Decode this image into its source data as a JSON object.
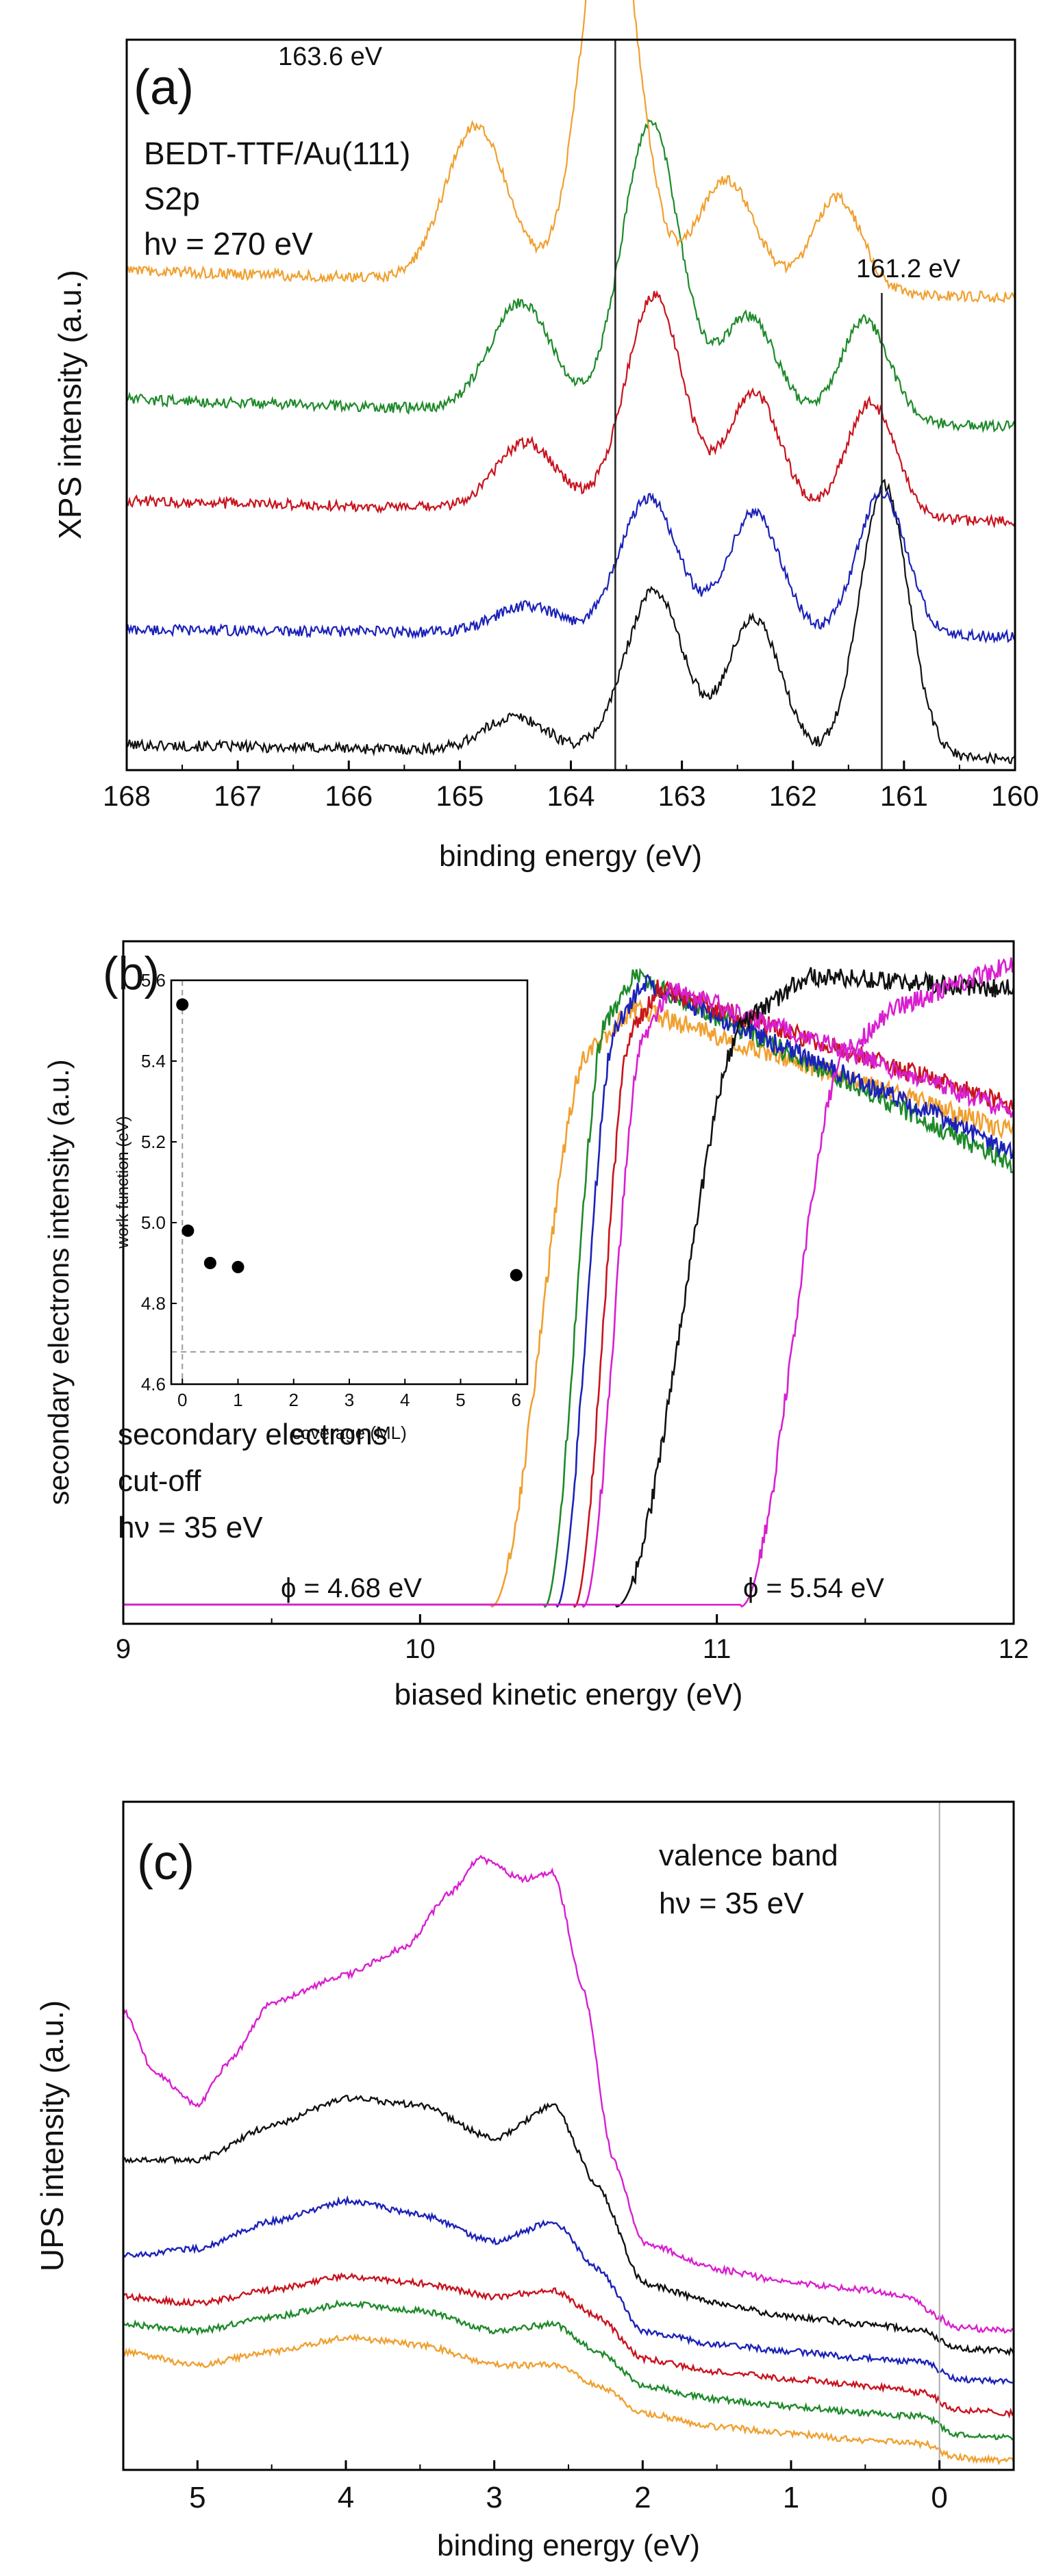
{
  "chart_data": [
    {
      "panel_id": "a",
      "type": "line",
      "panel_label": "(a)",
      "annotation_lines": [
        "BEDT-TTF/Au(111)",
        "S2p",
        "hν = 270 eV"
      ],
      "xlabel": "binding energy (eV)",
      "ylabel": "XPS intensity (a.u.)",
      "xlim": [
        168,
        160
      ],
      "ylim": [
        0,
        1
      ],
      "xticks": [
        168,
        167,
        166,
        165,
        164,
        163,
        162,
        161,
        160
      ],
      "vlines": [
        {
          "x": 163.6,
          "label": "163.6 eV"
        },
        {
          "x": 161.2,
          "label": "161.2 eV"
        }
      ],
      "series": [
        {
          "name": "black",
          "color": "#111111",
          "offset": 0.0,
          "bg": [
            0.02,
            0.0
          ],
          "peaks": [
            [
              164.5,
              0.05,
              0.28
            ],
            [
              163.25,
              0.24,
              0.26
            ],
            [
              162.35,
              0.2,
              0.24
            ],
            [
              161.18,
              0.4,
              0.22
            ]
          ]
        },
        {
          "name": "blue",
          "color": "#1c22b8",
          "offset": 0.18,
          "bg": [
            0.01,
            0.0
          ],
          "peaks": [
            [
              164.4,
              0.04,
              0.28
            ],
            [
              163.3,
              0.2,
              0.26
            ],
            [
              162.35,
              0.18,
              0.24
            ],
            [
              161.2,
              0.21,
              0.22
            ]
          ]
        },
        {
          "name": "red",
          "color": "#c8141e",
          "offset": 0.38,
          "bg": [
            0.0,
            -0.03
          ],
          "peaks": [
            [
              164.4,
              0.1,
              0.28
            ],
            [
              163.25,
              0.32,
              0.26
            ],
            [
              162.35,
              0.18,
              0.24
            ],
            [
              161.3,
              0.17,
              0.22
            ]
          ]
        },
        {
          "name": "green",
          "color": "#1e8a2a",
          "offset": 0.53,
          "bg": [
            0.0,
            -0.04
          ],
          "peaks": [
            [
              164.45,
              0.16,
              0.28
            ],
            [
              163.28,
              0.43,
              0.26
            ],
            [
              162.4,
              0.15,
              0.25
            ],
            [
              161.35,
              0.15,
              0.22
            ]
          ]
        },
        {
          "name": "orange",
          "color": "#f0a030",
          "offset": 0.72,
          "bg": [
            0.0,
            -0.04
          ],
          "peaks": [
            [
              164.85,
              0.23,
              0.28
            ],
            [
              163.65,
              0.6,
              0.25
            ],
            [
              162.6,
              0.16,
              0.26
            ],
            [
              161.6,
              0.14,
              0.22
            ]
          ]
        }
      ]
    },
    {
      "panel_id": "b",
      "type": "line",
      "panel_label": "(b)",
      "annotation_lines": [
        "secondary electrons",
        "cut-off",
        "hν = 35 eV"
      ],
      "xlabel": "biased kinetic energy (eV)",
      "ylabel": "secondary electrons intensity (a.u.)",
      "xlim": [
        9,
        12
      ],
      "ylim": [
        0,
        1
      ],
      "xticks": [
        9,
        10,
        11,
        12
      ],
      "phi_labels": [
        {
          "text": "ϕ = 4.68 eV",
          "x": 9.6
        },
        {
          "text": "ϕ = 5.54 eV",
          "x": 11.55
        }
      ],
      "series": [
        {
          "name": "orange",
          "color": "#f0a030",
          "onset": 10.24,
          "rise": 0.22,
          "peak": 10.72,
          "top": 0.92,
          "end": 0.73
        },
        {
          "name": "green",
          "color": "#1e8a2a",
          "onset": 10.42,
          "rise": 0.22,
          "peak": 10.72,
          "top": 0.97,
          "end": 0.68
        },
        {
          "name": "blue",
          "color": "#1c22b8",
          "onset": 10.46,
          "rise": 0.22,
          "peak": 10.75,
          "top": 0.96,
          "end": 0.7
        },
        {
          "name": "red",
          "color": "#c8141e",
          "onset": 10.52,
          "rise": 0.25,
          "peak": 10.8,
          "top": 0.95,
          "end": 0.77
        },
        {
          "name": "magenta",
          "color": "#d91fd0",
          "onset": 10.55,
          "rise": 0.25,
          "peak": 10.85,
          "top": 0.95,
          "end": 0.76
        },
        {
          "name": "black",
          "color": "#111111",
          "onset": 10.66,
          "rise": 0.35,
          "peak": 11.3,
          "top": 0.97,
          "end": 0.95
        },
        {
          "name": "magenta-high",
          "color": "#d91fd0",
          "onset": 11.08,
          "rise": 0.3,
          "peak": 11.6,
          "top": 0.92,
          "end": 0.99
        }
      ],
      "inset": {
        "type": "scatter",
        "xlabel": "coverage (ML)",
        "ylabel": "work function (eV)",
        "xlim": [
          -0.2,
          6.2
        ],
        "ylim": [
          4.6,
          5.6
        ],
        "xticks": [
          0,
          1,
          2,
          3,
          4,
          5,
          6
        ],
        "yticks": [
          4.6,
          4.8,
          5.0,
          5.2,
          5.4,
          5.6
        ],
        "ytick_labels": [
          "4.6",
          "4.8",
          "5.0",
          "5.2",
          "5.4",
          "5.6"
        ],
        "hline": 4.68,
        "vline": 0,
        "points": [
          [
            0,
            5.54
          ],
          [
            0.1,
            4.98
          ],
          [
            0.5,
            4.9
          ],
          [
            1,
            4.89
          ],
          [
            6,
            4.87
          ]
        ]
      }
    },
    {
      "panel_id": "c",
      "type": "line",
      "panel_label": "(c)",
      "annotation_lines": [
        "valence band",
        "hν = 35 eV"
      ],
      "xlabel": "binding energy (eV)",
      "ylabel": "UPS intensity (a.u.)",
      "xlim": [
        5.5,
        -0.5
      ],
      "ylim": [
        0,
        1
      ],
      "xticks": [
        5,
        4,
        3,
        2,
        1,
        0
      ],
      "vlines": [
        {
          "x": 0,
          "label": ""
        }
      ],
      "series": [
        {
          "name": "orange",
          "color": "#f0a030",
          "points": [
            [
              5.5,
              0.17
            ],
            [
              5.0,
              0.15
            ],
            [
              4.5,
              0.17
            ],
            [
              4.0,
              0.19
            ],
            [
              3.5,
              0.18
            ],
            [
              3.0,
              0.15
            ],
            [
              2.6,
              0.15
            ],
            [
              2.3,
              0.12
            ],
            [
              2.0,
              0.08
            ],
            [
              1.5,
              0.06
            ],
            [
              1.0,
              0.05
            ],
            [
              0.5,
              0.04
            ],
            [
              0.1,
              0.035
            ],
            [
              -0.1,
              0.015
            ],
            [
              -0.5,
              0.01
            ]
          ]
        },
        {
          "name": "green",
          "color": "#1e8a2a",
          "points": [
            [
              5.5,
              0.21
            ],
            [
              5.0,
              0.2
            ],
            [
              4.5,
              0.22
            ],
            [
              4.0,
              0.24
            ],
            [
              3.5,
              0.23
            ],
            [
              3.0,
              0.2
            ],
            [
              2.6,
              0.21
            ],
            [
              2.3,
              0.17
            ],
            [
              2.0,
              0.12
            ],
            [
              1.5,
              0.1
            ],
            [
              1.0,
              0.09
            ],
            [
              0.5,
              0.08
            ],
            [
              0.1,
              0.075
            ],
            [
              -0.1,
              0.05
            ],
            [
              -0.5,
              0.045
            ]
          ]
        },
        {
          "name": "red",
          "color": "#c8141e",
          "points": [
            [
              5.5,
              0.25
            ],
            [
              5.0,
              0.24
            ],
            [
              4.5,
              0.26
            ],
            [
              4.0,
              0.28
            ],
            [
              3.5,
              0.27
            ],
            [
              3.0,
              0.25
            ],
            [
              2.6,
              0.26
            ],
            [
              2.3,
              0.22
            ],
            [
              2.0,
              0.16
            ],
            [
              1.5,
              0.14
            ],
            [
              1.0,
              0.13
            ],
            [
              0.5,
              0.12
            ],
            [
              0.1,
              0.11
            ],
            [
              -0.1,
              0.085
            ],
            [
              -0.5,
              0.08
            ]
          ]
        },
        {
          "name": "blue",
          "color": "#1c22b8",
          "points": [
            [
              5.5,
              0.31
            ],
            [
              5.0,
              0.32
            ],
            [
              4.5,
              0.36
            ],
            [
              4.0,
              0.39
            ],
            [
              3.5,
              0.37
            ],
            [
              3.0,
              0.33
            ],
            [
              2.6,
              0.36
            ],
            [
              2.3,
              0.29
            ],
            [
              2.0,
              0.2
            ],
            [
              1.5,
              0.18
            ],
            [
              1.0,
              0.17
            ],
            [
              0.5,
              0.16
            ],
            [
              0.1,
              0.155
            ],
            [
              -0.1,
              0.13
            ],
            [
              -0.5,
              0.125
            ]
          ]
        },
        {
          "name": "black",
          "color": "#111111",
          "points": [
            [
              5.5,
              0.45
            ],
            [
              5.0,
              0.45
            ],
            [
              4.5,
              0.5
            ],
            [
              4.0,
              0.54
            ],
            [
              3.5,
              0.53
            ],
            [
              3.0,
              0.48
            ],
            [
              2.6,
              0.53
            ],
            [
              2.3,
              0.41
            ],
            [
              2.0,
              0.27
            ],
            [
              1.5,
              0.24
            ],
            [
              1.0,
              0.22
            ],
            [
              0.5,
              0.21
            ],
            [
              0.1,
              0.2
            ],
            [
              -0.1,
              0.175
            ],
            [
              -0.5,
              0.17
            ]
          ]
        },
        {
          "name": "magenta",
          "color": "#d91fd0",
          "points": [
            [
              5.5,
              0.67
            ],
            [
              5.3,
              0.58
            ],
            [
              5.0,
              0.53
            ],
            [
              4.8,
              0.59
            ],
            [
              4.5,
              0.68
            ],
            [
              4.0,
              0.72
            ],
            [
              3.6,
              0.76
            ],
            [
              3.3,
              0.84
            ],
            [
              3.1,
              0.89
            ],
            [
              2.8,
              0.86
            ],
            [
              2.6,
              0.87
            ],
            [
              2.4,
              0.7
            ],
            [
              2.2,
              0.45
            ],
            [
              2.0,
              0.33
            ],
            [
              1.5,
              0.29
            ],
            [
              1.0,
              0.27
            ],
            [
              0.5,
              0.26
            ],
            [
              0.2,
              0.25
            ],
            [
              0.0,
              0.22
            ],
            [
              -0.1,
              0.205
            ],
            [
              -0.5,
              0.2
            ]
          ]
        }
      ]
    }
  ]
}
